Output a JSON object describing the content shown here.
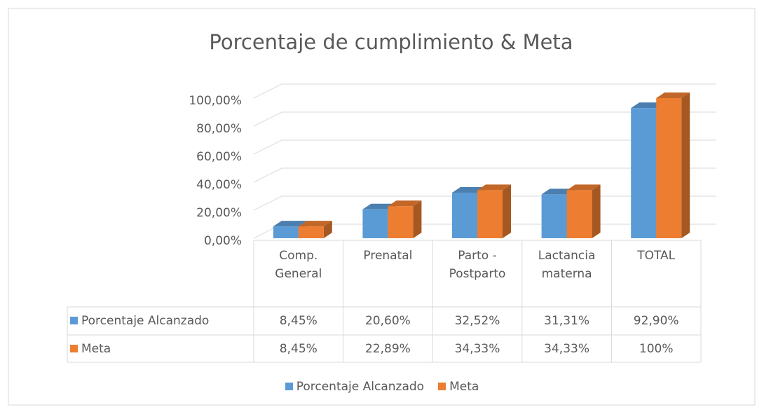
{
  "chart_data": {
    "type": "bar3d",
    "title": "Porcentaje de cumplimiento & Meta",
    "categories": [
      "Comp. General",
      "Prenatal",
      "Parto - Postparto",
      "Lactancia materna",
      "TOTAL"
    ],
    "series": [
      {
        "name": "Porcentaje Alcanzado",
        "color": "#5b9bd5",
        "values": [
          8.45,
          20.6,
          32.52,
          31.31,
          92.9
        ],
        "value_labels": [
          "8,45%",
          "20,60%",
          "32,52%",
          "31,31%",
          "92,90%"
        ]
      },
      {
        "name": "Meta",
        "color": "#ed7d31",
        "values": [
          8.45,
          22.89,
          34.33,
          34.33,
          100
        ],
        "value_labels": [
          "8,45%",
          "22,89%",
          "34,33%",
          "34,33%",
          "100%"
        ]
      }
    ],
    "ylim": [
      0,
      100
    ],
    "yticks": [
      {
        "value": 0,
        "label": "0,00%"
      },
      {
        "value": 20,
        "label": "20,00%"
      },
      {
        "value": 40,
        "label": "40,00%"
      },
      {
        "value": 60,
        "label": "60,00%"
      },
      {
        "value": 80,
        "label": "80,00%"
      },
      {
        "value": 100,
        "label": "100,00%"
      }
    ],
    "grid": true,
    "legend": "bottom",
    "data_table": true
  }
}
